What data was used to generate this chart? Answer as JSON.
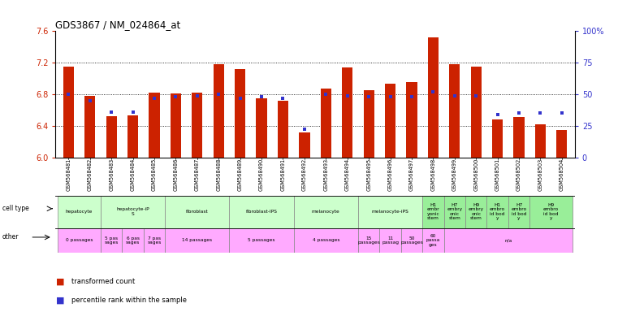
{
  "title": "GDS3867 / NM_024864_at",
  "samples": [
    "GSM568481",
    "GSM568482",
    "GSM568483",
    "GSM568484",
    "GSM568485",
    "GSM568486",
    "GSM568487",
    "GSM568488",
    "GSM568489",
    "GSM568490",
    "GSM568491",
    "GSM568492",
    "GSM568493",
    "GSM568494",
    "GSM568495",
    "GSM568496",
    "GSM568497",
    "GSM568498",
    "GSM568499",
    "GSM568500",
    "GSM568501",
    "GSM568502",
    "GSM568503",
    "GSM568504"
  ],
  "red_values": [
    7.15,
    6.78,
    6.52,
    6.53,
    6.82,
    6.81,
    6.82,
    7.18,
    7.12,
    6.75,
    6.72,
    6.32,
    6.87,
    7.14,
    6.85,
    6.93,
    6.95,
    7.52,
    7.18,
    7.15,
    6.48,
    6.51,
    6.42,
    6.35
  ],
  "blue_values": [
    0.5,
    0.45,
    0.36,
    0.36,
    0.47,
    0.48,
    0.49,
    0.5,
    0.47,
    0.48,
    0.47,
    0.22,
    0.5,
    0.49,
    0.48,
    0.48,
    0.48,
    0.52,
    0.49,
    0.49,
    0.34,
    0.35,
    0.35,
    0.35
  ],
  "y_min": 6.0,
  "y_max": 7.6,
  "y_ticks_left": [
    6.0,
    6.4,
    6.8,
    7.2,
    7.6
  ],
  "y_ticks_right_vals": [
    0.0,
    0.25,
    0.5,
    0.75,
    1.0
  ],
  "y_ticks_right_labels": [
    "0",
    "25",
    "50",
    "75",
    "100%"
  ],
  "dotted_lines": [
    6.4,
    6.8,
    7.2
  ],
  "bar_color": "#cc2200",
  "dot_color": "#3333cc",
  "background_color": "#ffffff",
  "cell_groups": [
    {
      "label": "hepatocyte",
      "start": 0,
      "end": 2,
      "color": "#ccffcc"
    },
    {
      "label": "hepatocyte-iP\nS",
      "start": 2,
      "end": 5,
      "color": "#ccffcc"
    },
    {
      "label": "fibroblast",
      "start": 5,
      "end": 8,
      "color": "#ccffcc"
    },
    {
      "label": "fibroblast-IPS",
      "start": 8,
      "end": 11,
      "color": "#ccffcc"
    },
    {
      "label": "melanocyte",
      "start": 11,
      "end": 14,
      "color": "#ccffcc"
    },
    {
      "label": "melanocyte-iPS",
      "start": 14,
      "end": 17,
      "color": "#ccffcc"
    },
    {
      "label": "H1\nembr\nyonic\nstem",
      "start": 17,
      "end": 18,
      "color": "#99ee99"
    },
    {
      "label": "H7\nembry\nonic\nstem",
      "start": 18,
      "end": 19,
      "color": "#99ee99"
    },
    {
      "label": "H9\nembry\nonic\nstem",
      "start": 19,
      "end": 20,
      "color": "#99ee99"
    },
    {
      "label": "H1\nembro\nid bod\ny",
      "start": 20,
      "end": 21,
      "color": "#99ee99"
    },
    {
      "label": "H7\nembro\nid bod\ny",
      "start": 21,
      "end": 22,
      "color": "#99ee99"
    },
    {
      "label": "H9\nembro\nid bod\ny",
      "start": 22,
      "end": 24,
      "color": "#99ee99"
    }
  ],
  "other_groups": [
    {
      "label": "0 passages",
      "start": 0,
      "end": 2,
      "color": "#ffaaff"
    },
    {
      "label": "5 pas\nsages",
      "start": 2,
      "end": 3,
      "color": "#ffaaff"
    },
    {
      "label": "6 pas\nsages",
      "start": 3,
      "end": 4,
      "color": "#ffaaff"
    },
    {
      "label": "7 pas\nsages",
      "start": 4,
      "end": 5,
      "color": "#ffaaff"
    },
    {
      "label": "14 passages",
      "start": 5,
      "end": 8,
      "color": "#ffaaff"
    },
    {
      "label": "5 passages",
      "start": 8,
      "end": 11,
      "color": "#ffaaff"
    },
    {
      "label": "4 passages",
      "start": 11,
      "end": 14,
      "color": "#ffaaff"
    },
    {
      "label": "15\npassages",
      "start": 14,
      "end": 15,
      "color": "#ffaaff"
    },
    {
      "label": "11\npassag",
      "start": 15,
      "end": 16,
      "color": "#ffaaff"
    },
    {
      "label": "50\npassages",
      "start": 16,
      "end": 17,
      "color": "#ffaaff"
    },
    {
      "label": "60\npassa\nges",
      "start": 17,
      "end": 18,
      "color": "#ffaaff"
    },
    {
      "label": "n/a",
      "start": 18,
      "end": 24,
      "color": "#ffaaff"
    }
  ]
}
